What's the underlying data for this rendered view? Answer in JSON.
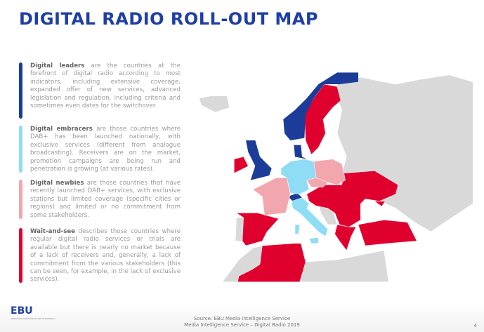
{
  "title": "DIGITAL RADIO ROLL-OUT MAP",
  "legend": [
    {
      "term": "Digital leaders",
      "desc": " are the countries at the forefront of digital radio according to most indicators, including extensive coverage, expanded offer of new services, advanced legislation and regulation, including criteria and sometimes even dates for the switchover.",
      "color": "#1b3c99"
    },
    {
      "term": "Digital embracers",
      "desc": " are those countries where DAB+ has been launched nationally, with exclusive services (different from analogue broadcasting). Receivers are on the market, promotion campaigns are being run and penetration is growing (at various rates).",
      "color": "#8fdcf5"
    },
    {
      "term": "Digital newbies",
      "desc": " are those countries that have recently launched DAB+ services, with exclusive stations but limited coverage (specific cities or regions) and limited or no commitment from some stakeholders.",
      "color": "#f2a7ae"
    },
    {
      "term": "Wait-and-see",
      "desc": " describes those countries where regular digital radio services or trials are available but there is nearly no market because of a lack of receivers and, generally, a lack of commitment from the various stakeholders (this can be seen, for example, in the lack of exclusive services).",
      "color": "#e0002e"
    }
  ],
  "colors": {
    "other": "#d9d9d9"
  },
  "footer": {
    "logo": "EBU",
    "logo_sub": "OPERATING EUROVISION AND EURORADIO",
    "source": "Source: EBU Media Intelligence Service",
    "subtitle": "Media Intelligence Service – Digital Radio 2019",
    "page": "4"
  }
}
